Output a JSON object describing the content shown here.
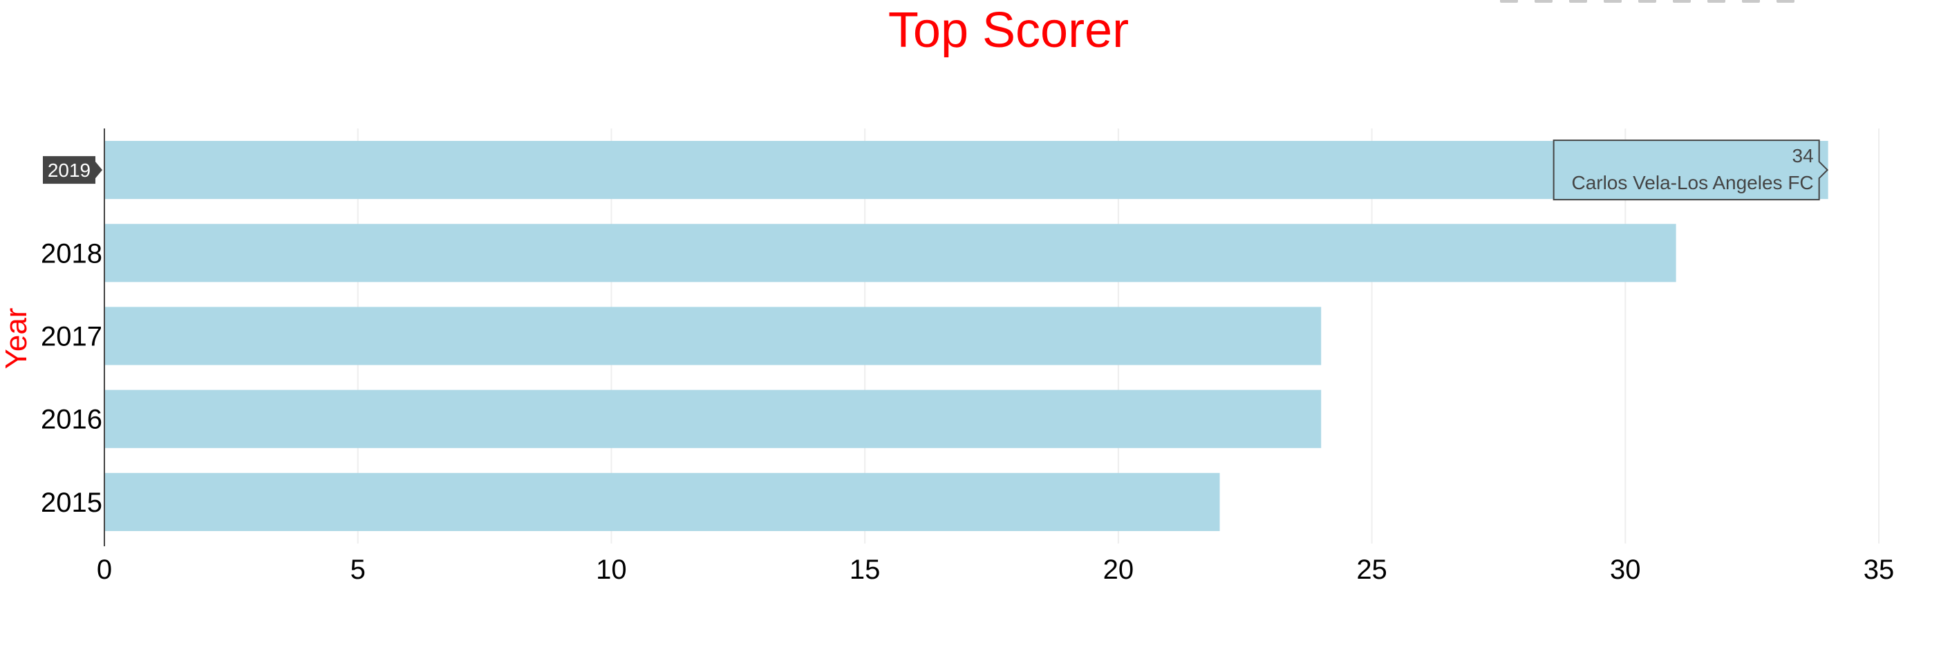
{
  "chart_data": {
    "type": "bar",
    "orientation": "horizontal",
    "title": "Top Scorer",
    "xlabel": "",
    "ylabel": "Year",
    "categories": [
      "2015",
      "2016",
      "2017",
      "2018",
      "2019"
    ],
    "values": [
      22,
      24,
      24,
      31,
      34
    ],
    "xlim": [
      0,
      35
    ],
    "xticks": [
      0,
      5,
      10,
      15,
      20,
      25,
      30,
      35
    ],
    "grid": true,
    "colors": {
      "bar": "#add8e6",
      "title": "#ff0000",
      "ylabel": "#ff0000",
      "grid": "#eeeeee",
      "axis": "#444444",
      "hover_bg": "#444444"
    },
    "hover": {
      "category": "2019",
      "value_label": "34",
      "text": "Carlos Vela-Los Angeles FC"
    }
  },
  "modebar": {
    "icons": [
      "camera-icon",
      "zoom-icon",
      "pan-icon",
      "box-select-icon",
      "lasso-icon",
      "zoom-in-icon",
      "zoom-out-icon",
      "autoscale-icon",
      "reset-axes-icon"
    ]
  }
}
